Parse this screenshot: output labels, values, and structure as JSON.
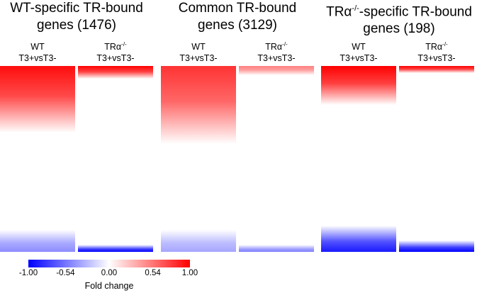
{
  "chart_data": {
    "type": "heatmap",
    "panels": [
      {
        "title_line1": "WT-specific TR-bound",
        "title_line2": "genes (1476)",
        "columns": [
          {
            "name_line1": "WT",
            "name_sup": "",
            "name_line2": "T3+vsT3-",
            "up_fraction": 0.36,
            "up_max": 0.95,
            "down_fraction": 0.12,
            "down_max": 0.45
          },
          {
            "name_line1": "TRα",
            "name_sup": "-/-",
            "name_line2": "T3+vsT3-",
            "up_fraction": 0.07,
            "up_max": 1.0,
            "down_fraction": 0.04,
            "down_max": 1.0
          }
        ]
      },
      {
        "title_line1": "Common TR-bound",
        "title_line2": "genes (3129)",
        "columns": [
          {
            "name_line1": "WT",
            "name_sup": "",
            "name_line2": "T3+vsT3-",
            "up_fraction": 0.42,
            "up_max": 0.8,
            "down_fraction": 0.12,
            "down_max": 0.35
          },
          {
            "name_line1": "TRα",
            "name_sup": "-/-",
            "name_line2": "T3+vsT3-",
            "up_fraction": 0.05,
            "up_max": 0.5,
            "down_fraction": 0.04,
            "down_max": 0.5
          }
        ]
      },
      {
        "title_line1": "TRα",
        "title_sup": "-/-",
        "title_line1_rest": "-specific TR-bound",
        "title_line2": "genes (198)",
        "columns": [
          {
            "name_line1": "WT",
            "name_sup": "",
            "name_line2": "T3+vsT3-",
            "up_fraction": 0.21,
            "up_max": 1.0,
            "down_fraction": 0.14,
            "down_max": 0.9
          },
          {
            "name_line1": "TRα",
            "name_sup": "-/-",
            "name_line2": "T3+vsT3-",
            "up_fraction": 0.04,
            "up_max": 1.0,
            "down_fraction": 0.06,
            "down_max": 1.0
          }
        ]
      }
    ],
    "colorbar": {
      "min": -1.0,
      "max": 1.0,
      "ticks": [
        "-1.00",
        "-0.54",
        "0.00",
        "0.54",
        "1.00"
      ],
      "tick_values": [
        -1.0,
        -0.54,
        0.0,
        0.54,
        1.0
      ],
      "low_color": "#0000ff",
      "mid_color": "#ffffff",
      "high_color": "#ff0000",
      "label": "Fold change"
    }
  }
}
